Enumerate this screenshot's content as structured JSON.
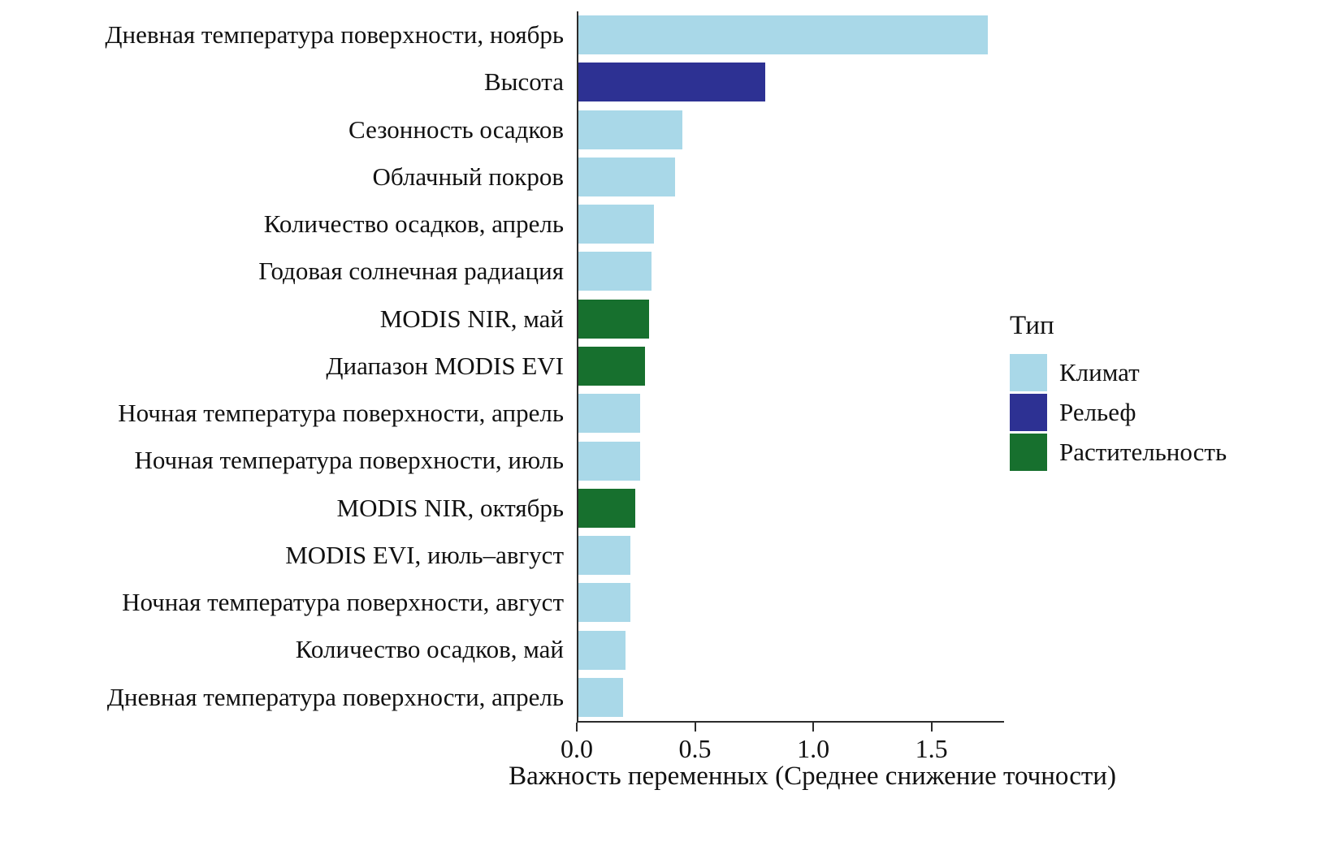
{
  "chart_data": {
    "type": "bar",
    "orientation": "horizontal",
    "title": "",
    "xlabel": "Важность переменных (Среднее снижение точности)",
    "ylabel": "",
    "xlim": [
      0,
      1.8
    ],
    "xticks": [
      0.0,
      0.5,
      1.0,
      1.5
    ],
    "xtick_labels": [
      "0.0",
      "0.5",
      "1.0",
      "1.5"
    ],
    "grid": false,
    "legend": {
      "title": "Тип",
      "position": "right",
      "entries": [
        {
          "label": "Климат",
          "color": "#a9d8e8"
        },
        {
          "label": "Рельеф",
          "color": "#2d3193"
        },
        {
          "label": "Растительность",
          "color": "#17702e"
        }
      ]
    },
    "bars": [
      {
        "label": "Дневная температура поверхности, ноябрь",
        "value": 1.73,
        "type": "Климат"
      },
      {
        "label": "Высота",
        "value": 0.79,
        "type": "Рельеф"
      },
      {
        "label": "Сезонность осадков",
        "value": 0.44,
        "type": "Климат"
      },
      {
        "label": "Облачный покров",
        "value": 0.41,
        "type": "Климат"
      },
      {
        "label": "Количество осадков, апрель",
        "value": 0.32,
        "type": "Климат"
      },
      {
        "label": "Годовая солнечная радиация",
        "value": 0.31,
        "type": "Климат"
      },
      {
        "label": "MODIS NIR, май",
        "value": 0.3,
        "type": "Растительность"
      },
      {
        "label": "Диапазон MODIS EVI",
        "value": 0.28,
        "type": "Растительность"
      },
      {
        "label": "Ночная температура поверхности, апрель",
        "value": 0.26,
        "type": "Климат"
      },
      {
        "label": "Ночная температура поверхности, июль",
        "value": 0.26,
        "type": "Климат"
      },
      {
        "label": "MODIS NIR, октябрь",
        "value": 0.24,
        "type": "Растительность"
      },
      {
        "label": "MODIS EVI, июль–август",
        "value": 0.22,
        "type": "Климат"
      },
      {
        "label": "Ночная температура поверхности, август",
        "value": 0.22,
        "type": "Климат"
      },
      {
        "label": "Количество осадков, май",
        "value": 0.2,
        "type": "Климат"
      },
      {
        "label": "Дневная температура поверхности, апрель",
        "value": 0.19,
        "type": "Климат"
      }
    ]
  }
}
